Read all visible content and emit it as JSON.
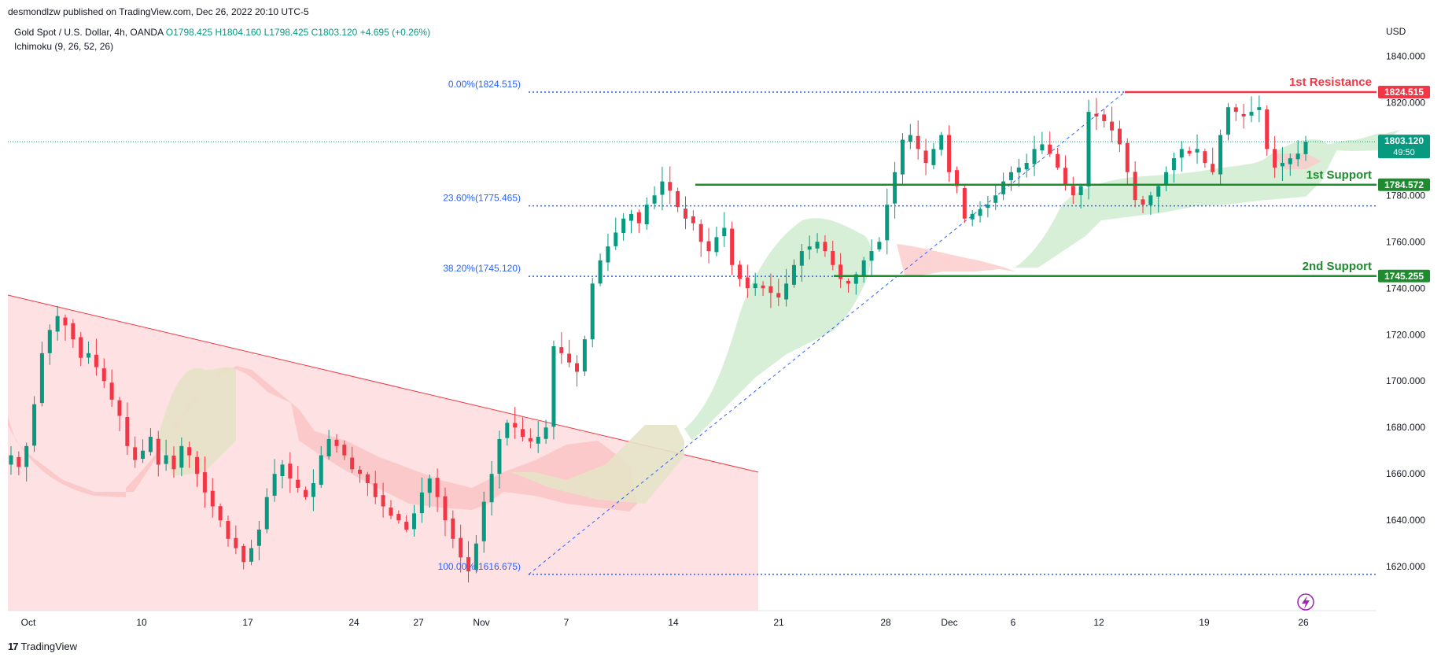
{
  "header": {
    "published": "desmondlzw published on TradingView.com, Dec 26, 2022 20:10 UTC-5",
    "symbol": "Gold Spot / U.S. Dollar, 4h, OANDA",
    "open": "O1798.425",
    "high": "H1804.160",
    "low": "L1798.425",
    "close": "C1803.120",
    "change": "+4.695 (+0.26%)",
    "indicator": "Ichimoku (9, 26, 52, 26)",
    "currency": "USD",
    "brand": "TradingView"
  },
  "colors": {
    "up": "#089981",
    "down": "#f23645",
    "resistance": "#f23645",
    "support": "#1e8c2e",
    "fib": "#2962ff",
    "cloud_bull": "#d7efd6",
    "cloud_bear": "#fbc9c9",
    "wedge": "#fde1e3"
  },
  "chart_data": {
    "type": "candlestick",
    "title": "",
    "ylim": [
      1600,
      1850
    ],
    "y_ticks": [
      "1620.000",
      "1640.000",
      "1660.000",
      "1680.000",
      "1700.000",
      "1720.000",
      "1740.000",
      "1760.000",
      "1780.000",
      "1800.000",
      "1820.000",
      "1840.000"
    ],
    "x_ticks": [
      "Oct",
      "10",
      "17",
      "24",
      "27",
      "Nov",
      "7",
      "14",
      "21",
      "28",
      "Dec",
      "6",
      "12",
      "19",
      "26"
    ],
    "fib_levels": [
      {
        "label": "0.00%(1824.515)",
        "price": 1824.515
      },
      {
        "label": "23.60%(1775.465)",
        "price": 1775.465
      },
      {
        "label": "38.20%(1745.120)",
        "price": 1745.12
      },
      {
        "label": "100.00%(1616.675)",
        "price": 1616.675
      }
    ],
    "levels": [
      {
        "name": "1st Resistance",
        "price": 1824.515,
        "tag": "1824.515",
        "kind": "resistance"
      },
      {
        "name": "1st Support",
        "price": 1784.572,
        "tag": "1784.572",
        "kind": "support"
      },
      {
        "name": "2nd Support",
        "price": 1745.255,
        "tag": "1745.255",
        "kind": "support"
      }
    ],
    "last_price": {
      "value": "1803.120",
      "countdown": "49:50",
      "price": 1803.12
    },
    "close_series": [
      1668,
      1663,
      1672,
      1690,
      1712,
      1722,
      1728,
      1724,
      1718,
      1710,
      1712,
      1706,
      1700,
      1692,
      1685,
      1672,
      1666,
      1670,
      1676,
      1664,
      1668,
      1662,
      1672,
      1668,
      1660,
      1652,
      1646,
      1640,
      1632,
      1628,
      1622,
      1628,
      1636,
      1650,
      1660,
      1664,
      1658,
      1654,
      1650,
      1656,
      1668,
      1675,
      1672,
      1668,
      1662,
      1660,
      1656,
      1650,
      1646,
      1642,
      1640,
      1636,
      1643,
      1652,
      1658,
      1650,
      1640,
      1632,
      1624,
      1618,
      1630,
      1648,
      1660,
      1675,
      1682,
      1680,
      1676,
      1674,
      1676,
      1680,
      1715,
      1712,
      1708,
      1704,
      1718,
      1742,
      1752,
      1758,
      1764,
      1770,
      1772,
      1768,
      1776,
      1780,
      1786,
      1782,
      1775,
      1770,
      1768,
      1760,
      1756,
      1762,
      1766,
      1750,
      1744,
      1740,
      1742,
      1740,
      1738,
      1736,
      1742,
      1750,
      1756,
      1758,
      1760,
      1756,
      1750,
      1744,
      1742,
      1746,
      1752,
      1756,
      1760,
      1776,
      1790,
      1804,
      1806,
      1800,
      1794,
      1800,
      1806,
      1790,
      1784,
      1770,
      1772,
      1774,
      1776,
      1780,
      1786,
      1790,
      1792,
      1794,
      1800,
      1802,
      1798,
      1792,
      1785,
      1780,
      1784,
      1816,
      1814,
      1812,
      1808,
      1802,
      1790,
      1778,
      1776,
      1780,
      1784,
      1790,
      1796,
      1800,
      1798,
      1800,
      1794,
      1790,
      1806,
      1818,
      1816,
      1814,
      1816,
      1818,
      1800,
      1792,
      1794,
      1796,
      1798,
      1803.12
    ]
  }
}
